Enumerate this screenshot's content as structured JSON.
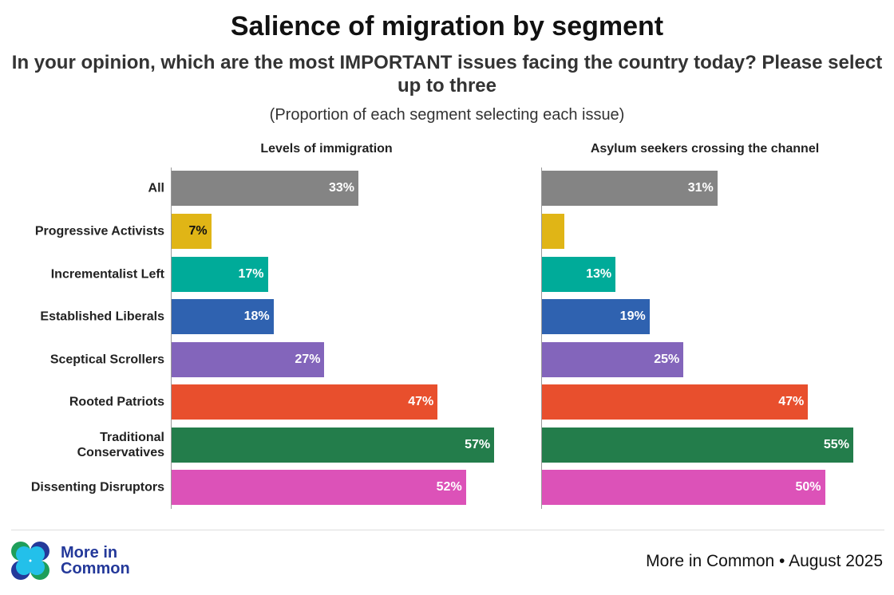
{
  "title": "Salience of migration by segment",
  "subtitle": "In your opinion, which are the most IMPORTANT issues facing the country today? Please select up to three",
  "note": "(Proportion of each segment selecting each issue)",
  "footer": {
    "logo_text_line1": "More in",
    "logo_text_line2": "Common",
    "credit": "More in Common • August 2025"
  },
  "chart_data": [
    {
      "type": "bar",
      "orientation": "horizontal",
      "title": "Levels of immigration",
      "categories": [
        "All",
        "Progressive Activists",
        "Incrementalist Left",
        "Established Liberals",
        "Sceptical Scrollers",
        "Rooted Patriots",
        "Traditional Conservatives",
        "Dissenting Disruptors"
      ],
      "values": [
        33,
        7,
        17,
        18,
        27,
        47,
        57,
        52
      ],
      "labels": [
        "33%",
        "7%",
        "17%",
        "18%",
        "27%",
        "47%",
        "57%",
        "52%"
      ],
      "xlim": [
        0,
        60
      ],
      "grid": false
    },
    {
      "type": "bar",
      "orientation": "horizontal",
      "title": "Asylum seekers crossing the channel",
      "categories": [
        "All",
        "Progressive Activists",
        "Incrementalist Left",
        "Established Liberals",
        "Sceptical Scrollers",
        "Rooted Patriots",
        "Traditional Conservatives",
        "Dissenting Disruptors"
      ],
      "values": [
        31,
        4,
        13,
        19,
        25,
        47,
        55,
        50
      ],
      "labels": [
        "31%",
        "",
        "13%",
        "19%",
        "25%",
        "47%",
        "55%",
        "50%"
      ],
      "xlim": [
        0,
        60
      ],
      "grid": false
    }
  ],
  "colors": [
    "#848484",
    "#e0b516",
    "#00ab99",
    "#2f62b0",
    "#8365bb",
    "#e84f2d",
    "#237d4b",
    "#dc52b8"
  ],
  "label_colors": [
    "#fff",
    "#111",
    "#fff",
    "#fff",
    "#fff",
    "#fff",
    "#fff",
    "#fff"
  ]
}
